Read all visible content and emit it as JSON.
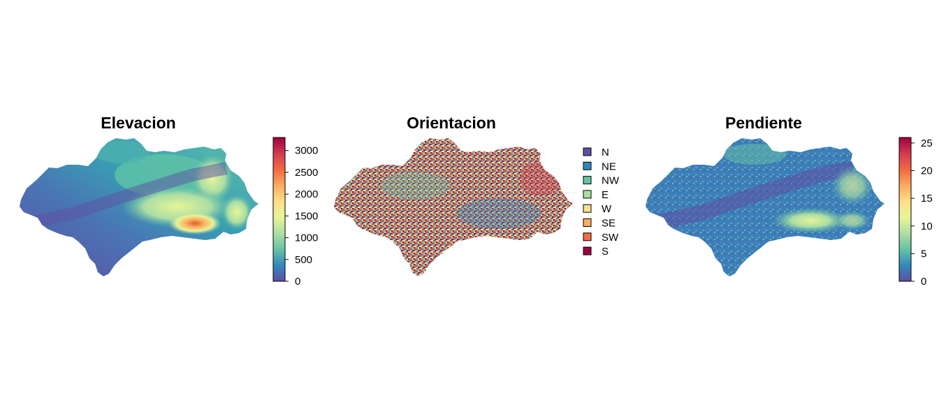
{
  "palette": [
    "#5E4FA2",
    "#3288BD",
    "#66C2A5",
    "#ABDDA4",
    "#E6F598",
    "#FEE08B",
    "#FDAE61",
    "#F46D43",
    "#D53E4F",
    "#9E0142"
  ],
  "maps": [
    {
      "title": "Elevacion",
      "legend_type": "continuous",
      "range": [
        0,
        3300
      ],
      "ticks": [
        "0",
        "500",
        "1000",
        "1500",
        "2000",
        "2500",
        "3000"
      ],
      "tick_values": [
        0,
        500,
        1000,
        1500,
        2000,
        2500,
        3000
      ]
    },
    {
      "title": "Orientacion",
      "legend_type": "categorical",
      "categories": [
        {
          "label": "N",
          "color": "#5E4FA2"
        },
        {
          "label": "NE",
          "color": "#3288BD"
        },
        {
          "label": "NW",
          "color": "#66C2A5"
        },
        {
          "label": "E",
          "color": "#ABDDA4"
        },
        {
          "label": "W",
          "color": "#FEE08B"
        },
        {
          "label": "SE",
          "color": "#FDAE61"
        },
        {
          "label": "SW",
          "color": "#F46D43"
        },
        {
          "label": "S",
          "color": "#9E0142"
        }
      ]
    },
    {
      "title": "Pendiente",
      "legend_type": "continuous",
      "range": [
        0,
        26
      ],
      "ticks": [
        "0",
        "5",
        "10",
        "15",
        "20",
        "25"
      ],
      "tick_values": [
        0,
        5,
        10,
        15,
        20,
        25
      ]
    }
  ]
}
